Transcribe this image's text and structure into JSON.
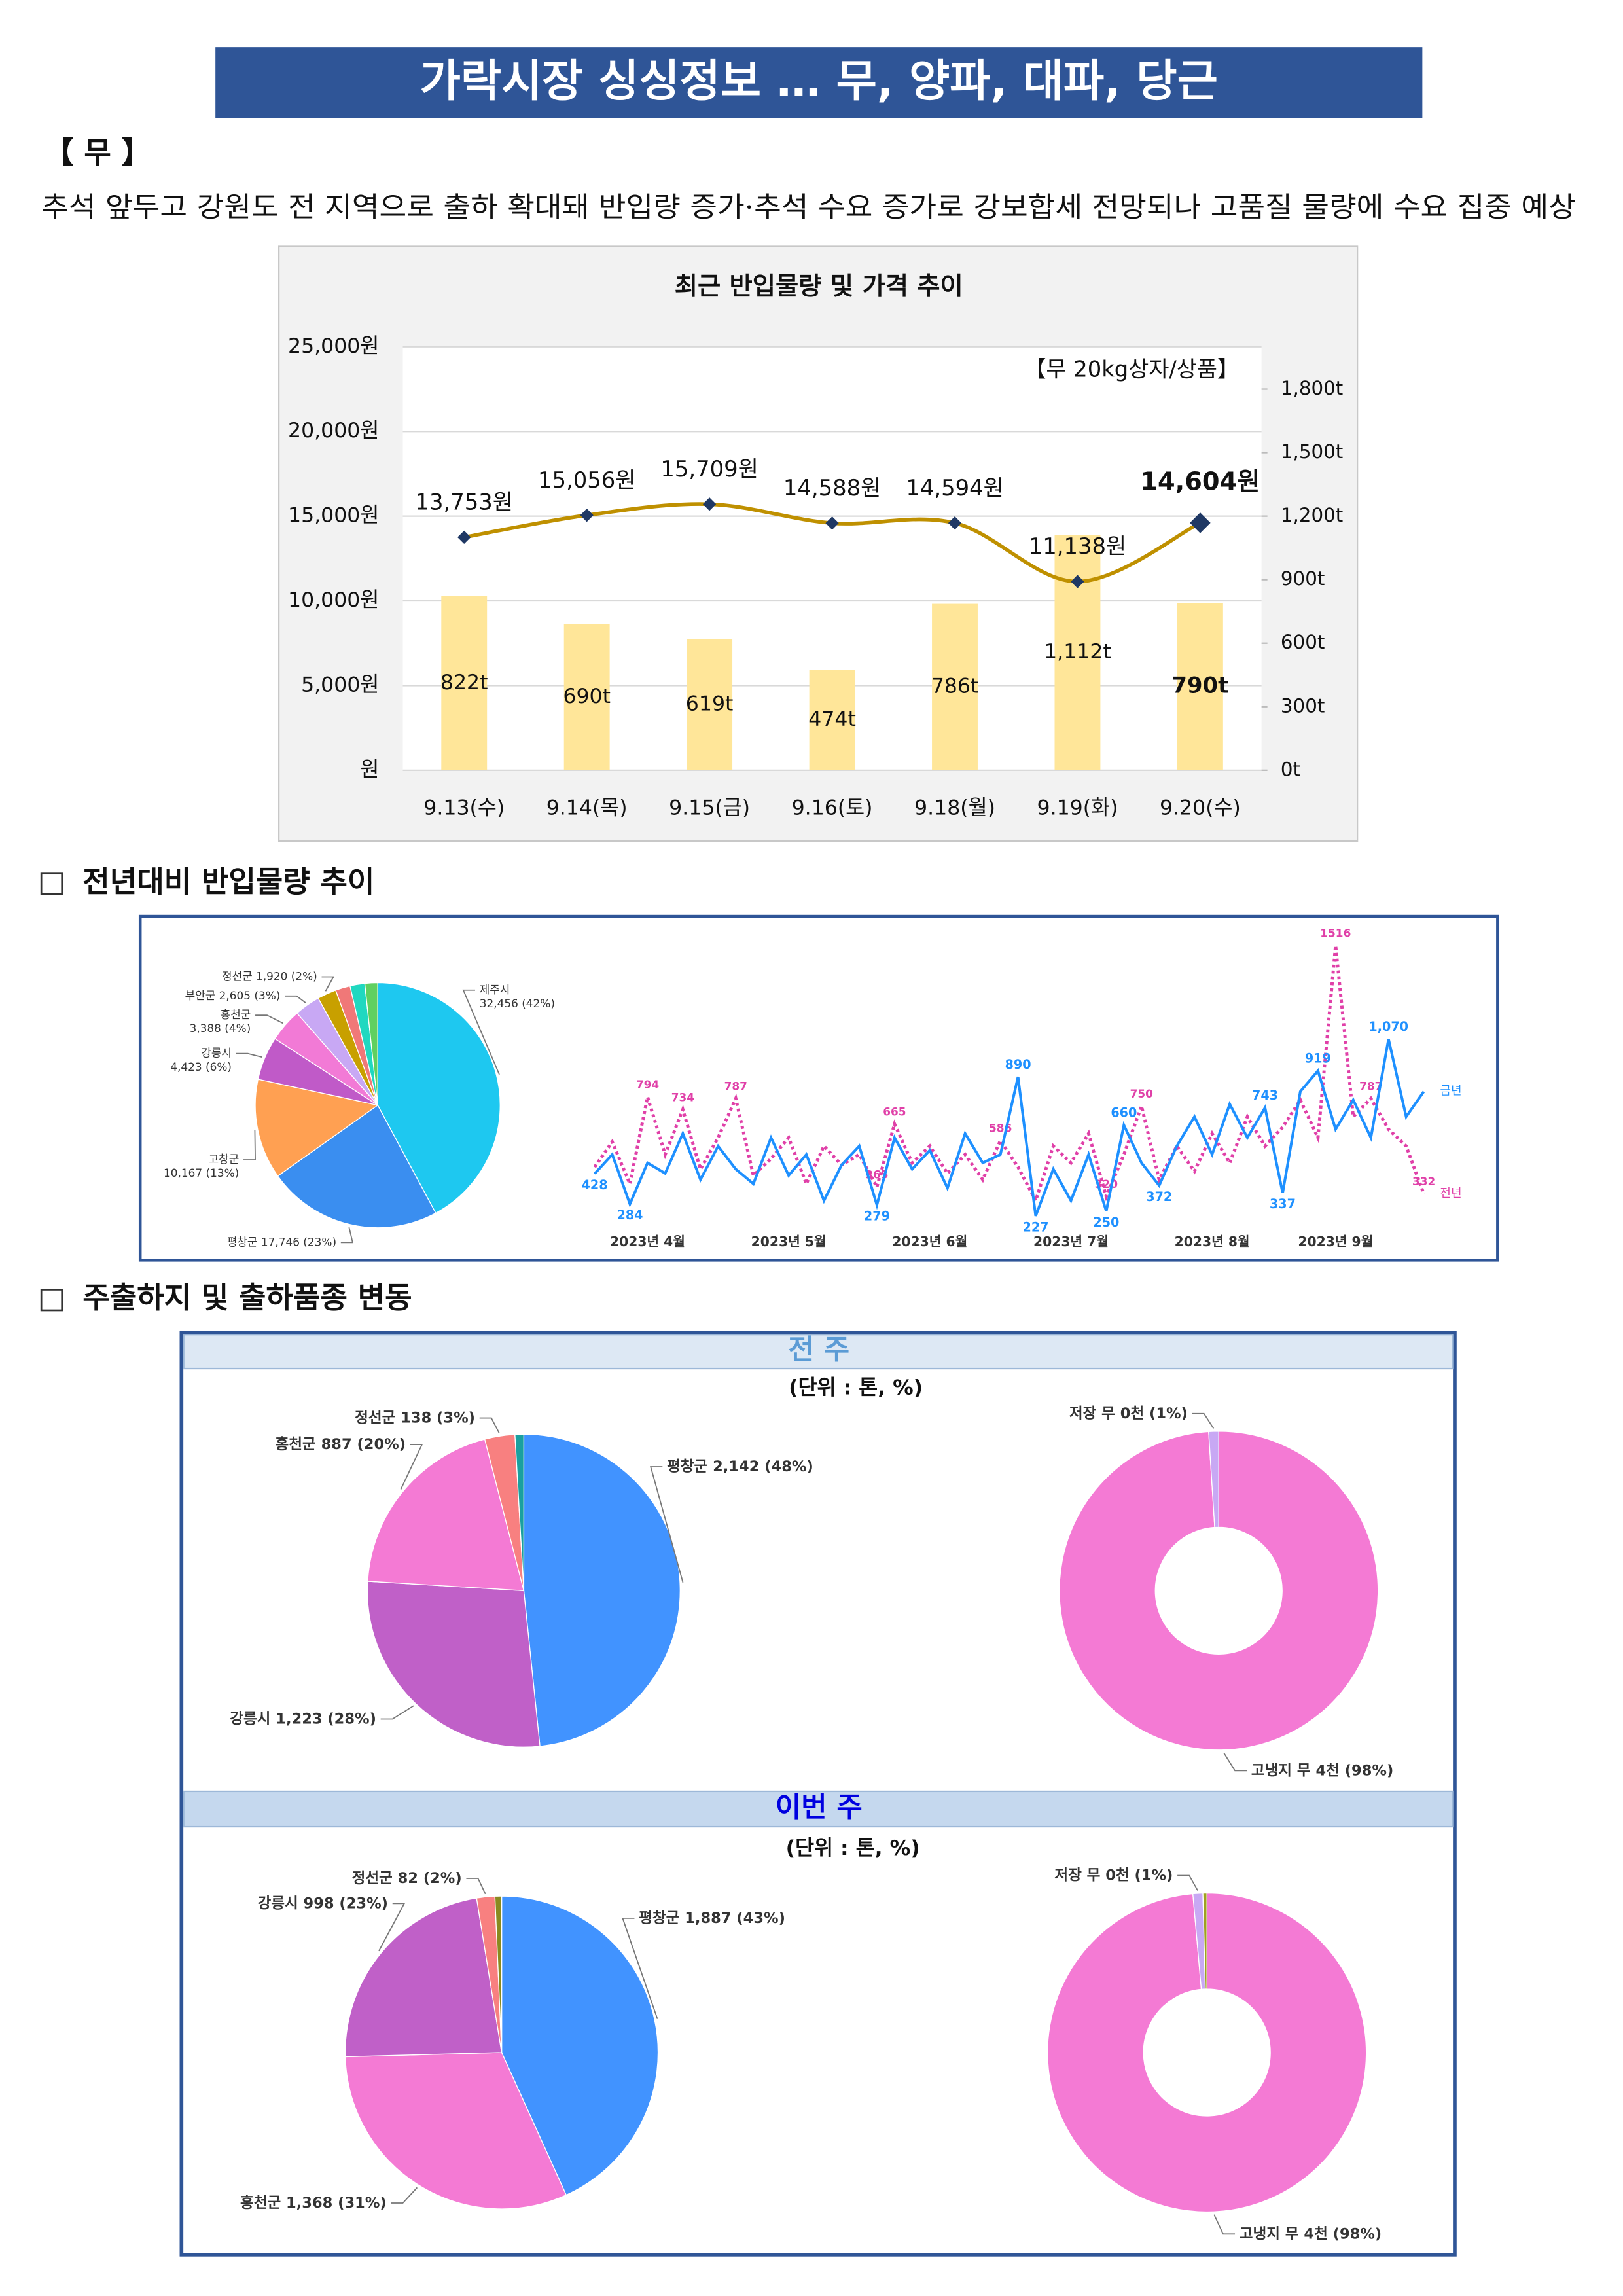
{
  "header": {
    "title": "가락시장 싱싱정보 … 무, 양파, 대파, 당근"
  },
  "section1": {
    "heading": "【 무 】",
    "summary": "추석 앞두고 강원도 전 지역으로 출하 확대돼 반입량 증가·추석 수요 증가로 강보합세 전망되나 고품질 물량에 수요 집중 예상"
  },
  "section2": {
    "heading": "전년대비 반입물량 추이"
  },
  "section3": {
    "heading": "주출하지 및 출하품종 변동",
    "previous_week": "전 주",
    "this_week": "이번 주",
    "unit_previous": "(단위 : 톤, %)",
    "unit_this": "(단위 : 톤, %)"
  },
  "chart_data": [
    {
      "type": "combo",
      "title": "최근 반입물량 및 가격 추이",
      "annotation": "【무 20kg상자/상품】",
      "categories": [
        "9.13(수)",
        "9.14(목)",
        "9.15(금)",
        "9.16(토)",
        "9.18(월)",
        "9.19(화)",
        "9.20(수)"
      ],
      "series": [
        {
          "type": "bar",
          "axis": "y2",
          "color": "#ffe699",
          "values": [
            822,
            690,
            619,
            474,
            786,
            1112,
            790
          ],
          "value_labels": [
            "822t",
            "690t",
            "619t",
            "474t",
            "786t",
            "1,112t",
            "790t"
          ]
        },
        {
          "type": "line",
          "color": "#bf9000",
          "marker_color": "#1f3864",
          "values": [
            13753,
            15056,
            15709,
            14588,
            14594,
            11138,
            14604
          ],
          "value_labels": [
            "13,753원",
            "15,056원",
            "15,709원",
            "14,588원",
            "14,594원",
            "11,138원",
            "14,604원"
          ]
        }
      ],
      "highlight_last": true,
      "grid": true,
      "ylim": [
        0,
        25000
      ],
      "yticks": [
        {
          "value": 0,
          "label": "원"
        },
        {
          "value": 5000,
          "label": "5,000원"
        },
        {
          "value": 10000,
          "label": "10,000원"
        },
        {
          "value": 15000,
          "label": "15,000원"
        },
        {
          "value": 20000,
          "label": "20,000원"
        },
        {
          "value": 25000,
          "label": "25,000원"
        }
      ],
      "y2lim": [
        0,
        2000
      ],
      "y2ticks": [
        {
          "value": 0,
          "label": "0t"
        },
        {
          "value": 300,
          "label": "300t"
        },
        {
          "value": 600,
          "label": "600t"
        },
        {
          "value": 900,
          "label": "900t"
        },
        {
          "value": 1200,
          "label": "1,200t"
        },
        {
          "value": 1500,
          "label": "1,500t"
        },
        {
          "value": 1800,
          "label": "1,800t"
        }
      ]
    },
    {
      "type": "pie",
      "categories": [
        "제주시",
        "평창군",
        "고창군",
        "강릉시",
        "홍천군",
        "부안군",
        "정선군",
        null,
        null,
        null
      ],
      "values": [
        32456,
        17746,
        10167,
        4423,
        3388,
        2605,
        1920,
        1500,
        1500,
        1300
      ],
      "value_labels": [
        "32,456 (42%)",
        "17,746 (23%)",
        "10,167 (13%)",
        "4,423 (6%)",
        "3,388 (4%)",
        "2,605 (3%)",
        "1,920 (2%)",
        null,
        null,
        null
      ],
      "colors": [
        "#1ec8f0",
        "#3a8ef0",
        "#ffa052",
        "#c05ac8",
        "#f27ad6",
        "#c8a8f4",
        "#c8a000",
        "#f07878",
        "#20d8c0",
        "#60d060"
      ]
    },
    {
      "type": "line",
      "categories": [
        null,
        null,
        null,
        "2023년 4월",
        null,
        null,
        null,
        null,
        null,
        null,
        null,
        "2023년 5월",
        null,
        null,
        null,
        null,
        null,
        null,
        null,
        "2023년 6월",
        null,
        null,
        null,
        null,
        null,
        null,
        null,
        "2023년 7월",
        null,
        null,
        null,
        null,
        null,
        null,
        null,
        "2023년 8월",
        null,
        null,
        null,
        null,
        null,
        null,
        "2023년 9월",
        null,
        null,
        null,
        null,
        null
      ],
      "ylim": [
        150,
        1620
      ],
      "series": [
        {
          "name": "금년",
          "color": "#1e90ff",
          "dash": "solid",
          "values": [
            428,
            520,
            284,
            480,
            430,
            620,
            400,
            560,
            450,
            380,
            600,
            420,
            520,
            300,
            470,
            560,
            279,
            600,
            450,
            540,
            360,
            620,
            480,
            520,
            890,
            227,
            450,
            300,
            520,
            250,
            660,
            480,
            372,
            560,
            700,
            520,
            760,
            600,
            743,
            337,
            820,
            919,
            640,
            780,
            600,
            1070,
            700,
            820
          ],
          "value_labels": [
            "428",
            null,
            "284",
            null,
            null,
            null,
            null,
            null,
            null,
            null,
            null,
            null,
            null,
            null,
            null,
            null,
            "279",
            null,
            null,
            null,
            null,
            null,
            null,
            null,
            "890",
            "227",
            null,
            null,
            null,
            "250",
            "660",
            null,
            "372",
            null,
            null,
            null,
            null,
            null,
            "743",
            "337",
            null,
            "919",
            null,
            null,
            null,
            "1,070",
            null,
            null
          ]
        },
        {
          "name": "전년",
          "color": "#e040a8",
          "dash": "dotted",
          "values": [
            460,
            580,
            380,
            794,
            520,
            734,
            450,
            600,
            787,
            420,
            500,
            600,
            380,
            560,
            470,
            520,
            365,
            665,
            480,
            560,
            430,
            520,
            400,
            586,
            460,
            300,
            560,
            480,
            620,
            320,
            520,
            750,
            400,
            560,
            440,
            620,
            480,
            700,
            560,
            650,
            780,
            600,
            1516,
            700,
            787,
            640,
            560,
            332
          ],
          "value_labels": [
            null,
            null,
            null,
            "794",
            null,
            "734",
            null,
            null,
            "787",
            null,
            null,
            null,
            null,
            null,
            null,
            null,
            "365",
            "665",
            null,
            null,
            null,
            null,
            null,
            "586",
            null,
            null,
            null,
            null,
            null,
            "320",
            null,
            "750",
            null,
            null,
            null,
            null,
            null,
            null,
            null,
            null,
            null,
            null,
            "1516",
            null,
            "787",
            null,
            null,
            "332"
          ]
        }
      ]
    },
    {
      "type": "pie",
      "categories": [
        "평창군",
        "강릉시",
        "홍천군",
        "정선군",
        null
      ],
      "values": [
        2142,
        1223,
        887,
        138,
        40
      ],
      "value_labels": [
        "2,142 (48%)",
        "1,223 (28%)",
        "887 (20%)",
        "138 (3%)",
        null
      ],
      "colors": [
        "#4193ff",
        "#c060c8",
        "#f47ad4",
        "#f88080",
        "#1aa0a0"
      ]
    },
    {
      "type": "donut",
      "categories": [
        "고냉지 무",
        "저장 무"
      ],
      "values": [
        98,
        1
      ],
      "value_labels": [
        "4천 (98%)",
        "0천 (1%)"
      ],
      "colors": [
        "#f47ad4",
        "#c8a8f4"
      ]
    },
    {
      "type": "pie",
      "categories": [
        "평창군",
        "홍천군",
        "강릉시",
        "정선군",
        null
      ],
      "values": [
        1887,
        1368,
        998,
        82,
        30
      ],
      "value_labels": [
        "1,887 (43%)",
        "1,368 (31%)",
        "998 (23%)",
        "82 (2%)",
        null
      ],
      "colors": [
        "#4193ff",
        "#f47ad4",
        "#c060c8",
        "#f88080",
        "#8a8a20"
      ]
    },
    {
      "type": "donut",
      "categories": [
        "고냉지 무",
        "저장 무",
        null
      ],
      "values": [
        98,
        1,
        0.4
      ],
      "value_labels": [
        "4천 (98%)",
        "0천 (1%)",
        null
      ],
      "colors": [
        "#f47ad4",
        "#c8a8f4",
        "#a0a020"
      ]
    }
  ]
}
